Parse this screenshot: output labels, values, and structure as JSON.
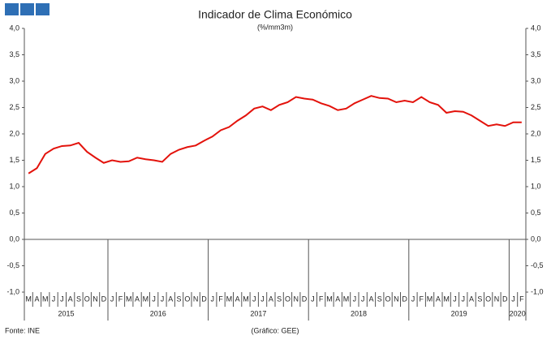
{
  "chart_data": {
    "type": "line",
    "title": "Indicador de Clima Económico",
    "subtitle": "(%/mm3m)",
    "categories": [
      "M",
      "A",
      "M",
      "J",
      "J",
      "A",
      "S",
      "O",
      "N",
      "D",
      "J",
      "F",
      "M",
      "A",
      "M",
      "J",
      "J",
      "A",
      "S",
      "O",
      "N",
      "D",
      "J",
      "F",
      "M",
      "A",
      "M",
      "J",
      "J",
      "A",
      "S",
      "O",
      "N",
      "D",
      "J",
      "F",
      "M",
      "A",
      "M",
      "J",
      "J",
      "A",
      "S",
      "O",
      "N",
      "D",
      "J",
      "F",
      "M",
      "A",
      "M",
      "J",
      "J",
      "A",
      "S",
      "O",
      "N",
      "D",
      "J",
      "F"
    ],
    "years": [
      "2015",
      "2016",
      "2017",
      "2018",
      "2019",
      "2020"
    ],
    "series": [
      {
        "color": "#e3120b",
        "values": [
          1.25,
          1.35,
          1.62,
          1.72,
          1.77,
          1.78,
          1.83,
          1.66,
          1.55,
          1.45,
          1.5,
          1.47,
          1.48,
          1.55,
          1.52,
          1.5,
          1.47,
          1.62,
          1.7,
          1.75,
          1.78,
          1.87,
          1.95,
          2.07,
          2.13,
          2.25,
          2.35,
          2.48,
          2.52,
          2.45,
          2.55,
          2.6,
          2.7,
          2.67,
          2.65,
          2.58,
          2.53,
          2.45,
          2.48,
          2.58,
          2.65,
          2.72,
          2.68,
          2.67,
          2.6,
          2.63,
          2.6,
          2.7,
          2.6,
          2.55,
          2.4,
          2.43,
          2.42,
          2.35,
          2.25,
          2.15,
          2.18,
          2.15,
          2.22,
          2.22
        ]
      }
    ],
    "ylim": [
      -1,
      4
    ],
    "yticks": [
      {
        "value": -1,
        "label": "-1,0"
      },
      {
        "value": -0.5,
        "label": "-0,5"
      },
      {
        "value": 0,
        "label": "0,0"
      },
      {
        "value": 0.5,
        "label": "0,5"
      },
      {
        "value": 1,
        "label": "1,0"
      },
      {
        "value": 1.5,
        "label": "1,5"
      },
      {
        "value": 2,
        "label": "2,0"
      },
      {
        "value": 2.5,
        "label": "2,5"
      },
      {
        "value": 3,
        "label": "3,0"
      },
      {
        "value": 3.5,
        "label": "3,5"
      },
      {
        "value": 4,
        "label": "4,0"
      }
    ],
    "source": "Fonte: INE",
    "credit": "(Gráfico: GEE)"
  }
}
